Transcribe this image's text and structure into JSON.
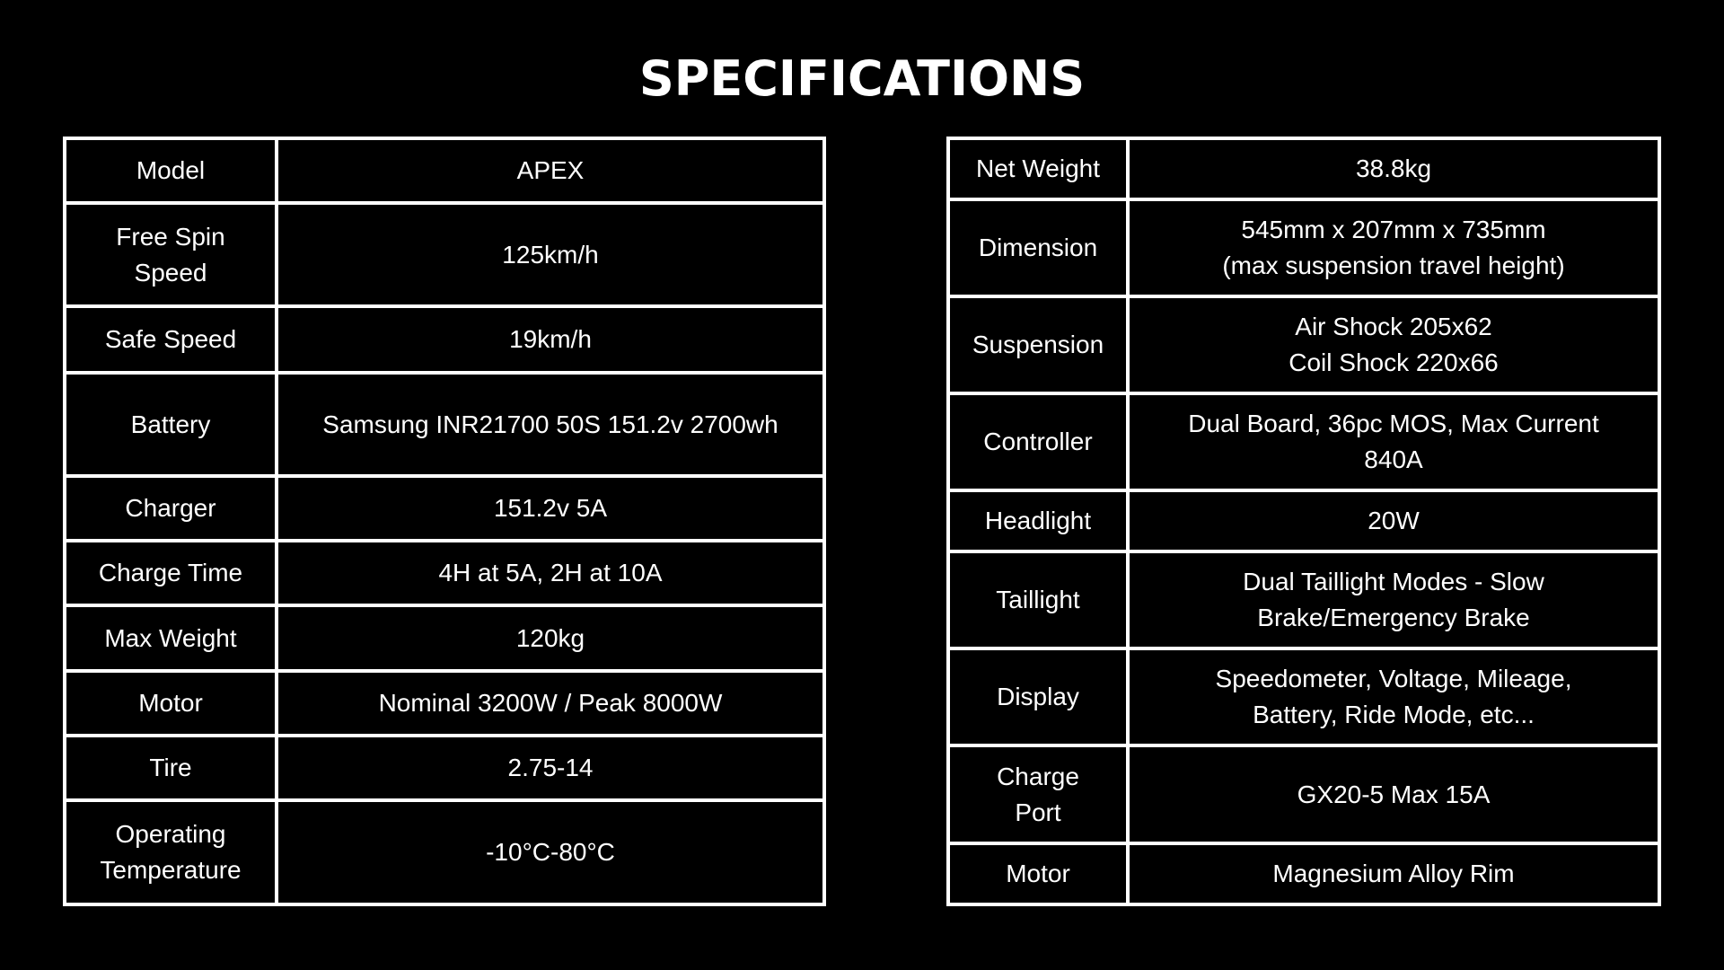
{
  "title": "SPECIFICATIONS",
  "left_table": [
    {
      "label": "Model",
      "value": "APEX"
    },
    {
      "label": "Free Spin\nSpeed",
      "value": "125km/h"
    },
    {
      "label": "Safe Speed",
      "value": "19km/h"
    },
    {
      "label": "Battery",
      "value": "Samsung INR21700 50S 151.2v 2700wh"
    },
    {
      "label": "Charger",
      "value": "151.2v 5A"
    },
    {
      "label": "Charge Time",
      "value": "4H at 5A, 2H at 10A"
    },
    {
      "label": "Max Weight",
      "value": "120kg"
    },
    {
      "label": "Motor",
      "value": "Nominal 3200W / Peak 8000W"
    },
    {
      "label": "Tire",
      "value": "2.75-14"
    },
    {
      "label": "Operating\nTemperature",
      "value": "-10°C-80°C"
    }
  ],
  "right_table": [
    {
      "label": "Net Weight",
      "value": "38.8kg"
    },
    {
      "label": "Dimension",
      "value": "545mm x 207mm x 735mm\n(max suspension travel height)"
    },
    {
      "label": "Suspension",
      "value": "Air Shock 205x62\nCoil Shock 220x66"
    },
    {
      "label": "Controller",
      "value": "Dual Board, 36pc MOS, Max Current\n840A"
    },
    {
      "label": "Headlight",
      "value": "20W"
    },
    {
      "label": "Taillight",
      "value": "Dual Taillight Modes - Slow\nBrake/Emergency Brake"
    },
    {
      "label": "Display",
      "value": "Speedometer, Voltage, Mileage,\nBattery, Ride Mode, etc..."
    },
    {
      "label": "Charge\nPort",
      "value": "GX20-5 Max 15A"
    },
    {
      "label": "Motor",
      "value": "Magnesium Alloy Rim"
    }
  ]
}
